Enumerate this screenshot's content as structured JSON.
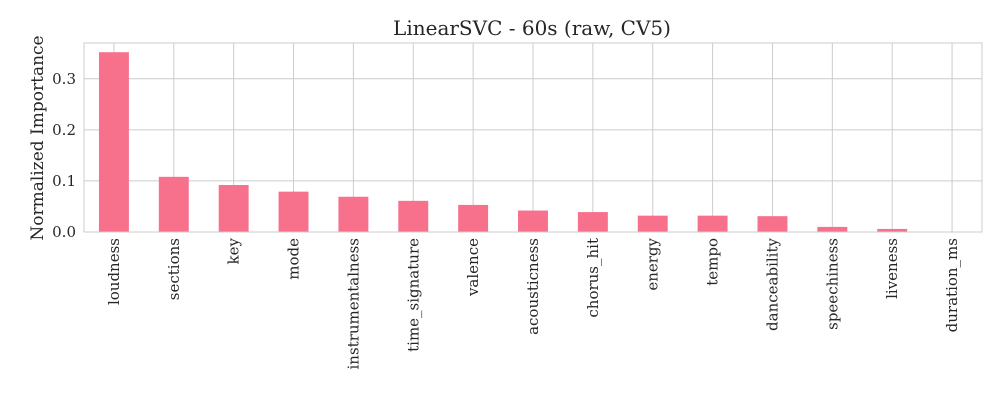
{
  "chart_data": {
    "type": "bar",
    "title": "LinearSVC - 60s (raw, CV5)",
    "xlabel": "",
    "ylabel": "Normalized Importance",
    "categories": [
      "loudness",
      "sections",
      "key",
      "mode",
      "instrumentalness",
      "time_signature",
      "valence",
      "acousticness",
      "chorus_hit",
      "energy",
      "tempo",
      "danceability",
      "speechiness",
      "liveness",
      "duration_ms"
    ],
    "values": [
      0.352,
      0.108,
      0.092,
      0.079,
      0.069,
      0.061,
      0.053,
      0.042,
      0.039,
      0.032,
      0.032,
      0.031,
      0.01,
      0.006,
      0.0
    ],
    "ylim": [
      0,
      0.37
    ],
    "yticks": [
      0.0,
      0.1,
      0.2,
      0.3
    ],
    "ytick_labels": [
      "0.0",
      "0.1",
      "0.2",
      "0.3"
    ],
    "grid": true,
    "bar_color": "#f7718d",
    "grid_color": "#cccccc"
  }
}
